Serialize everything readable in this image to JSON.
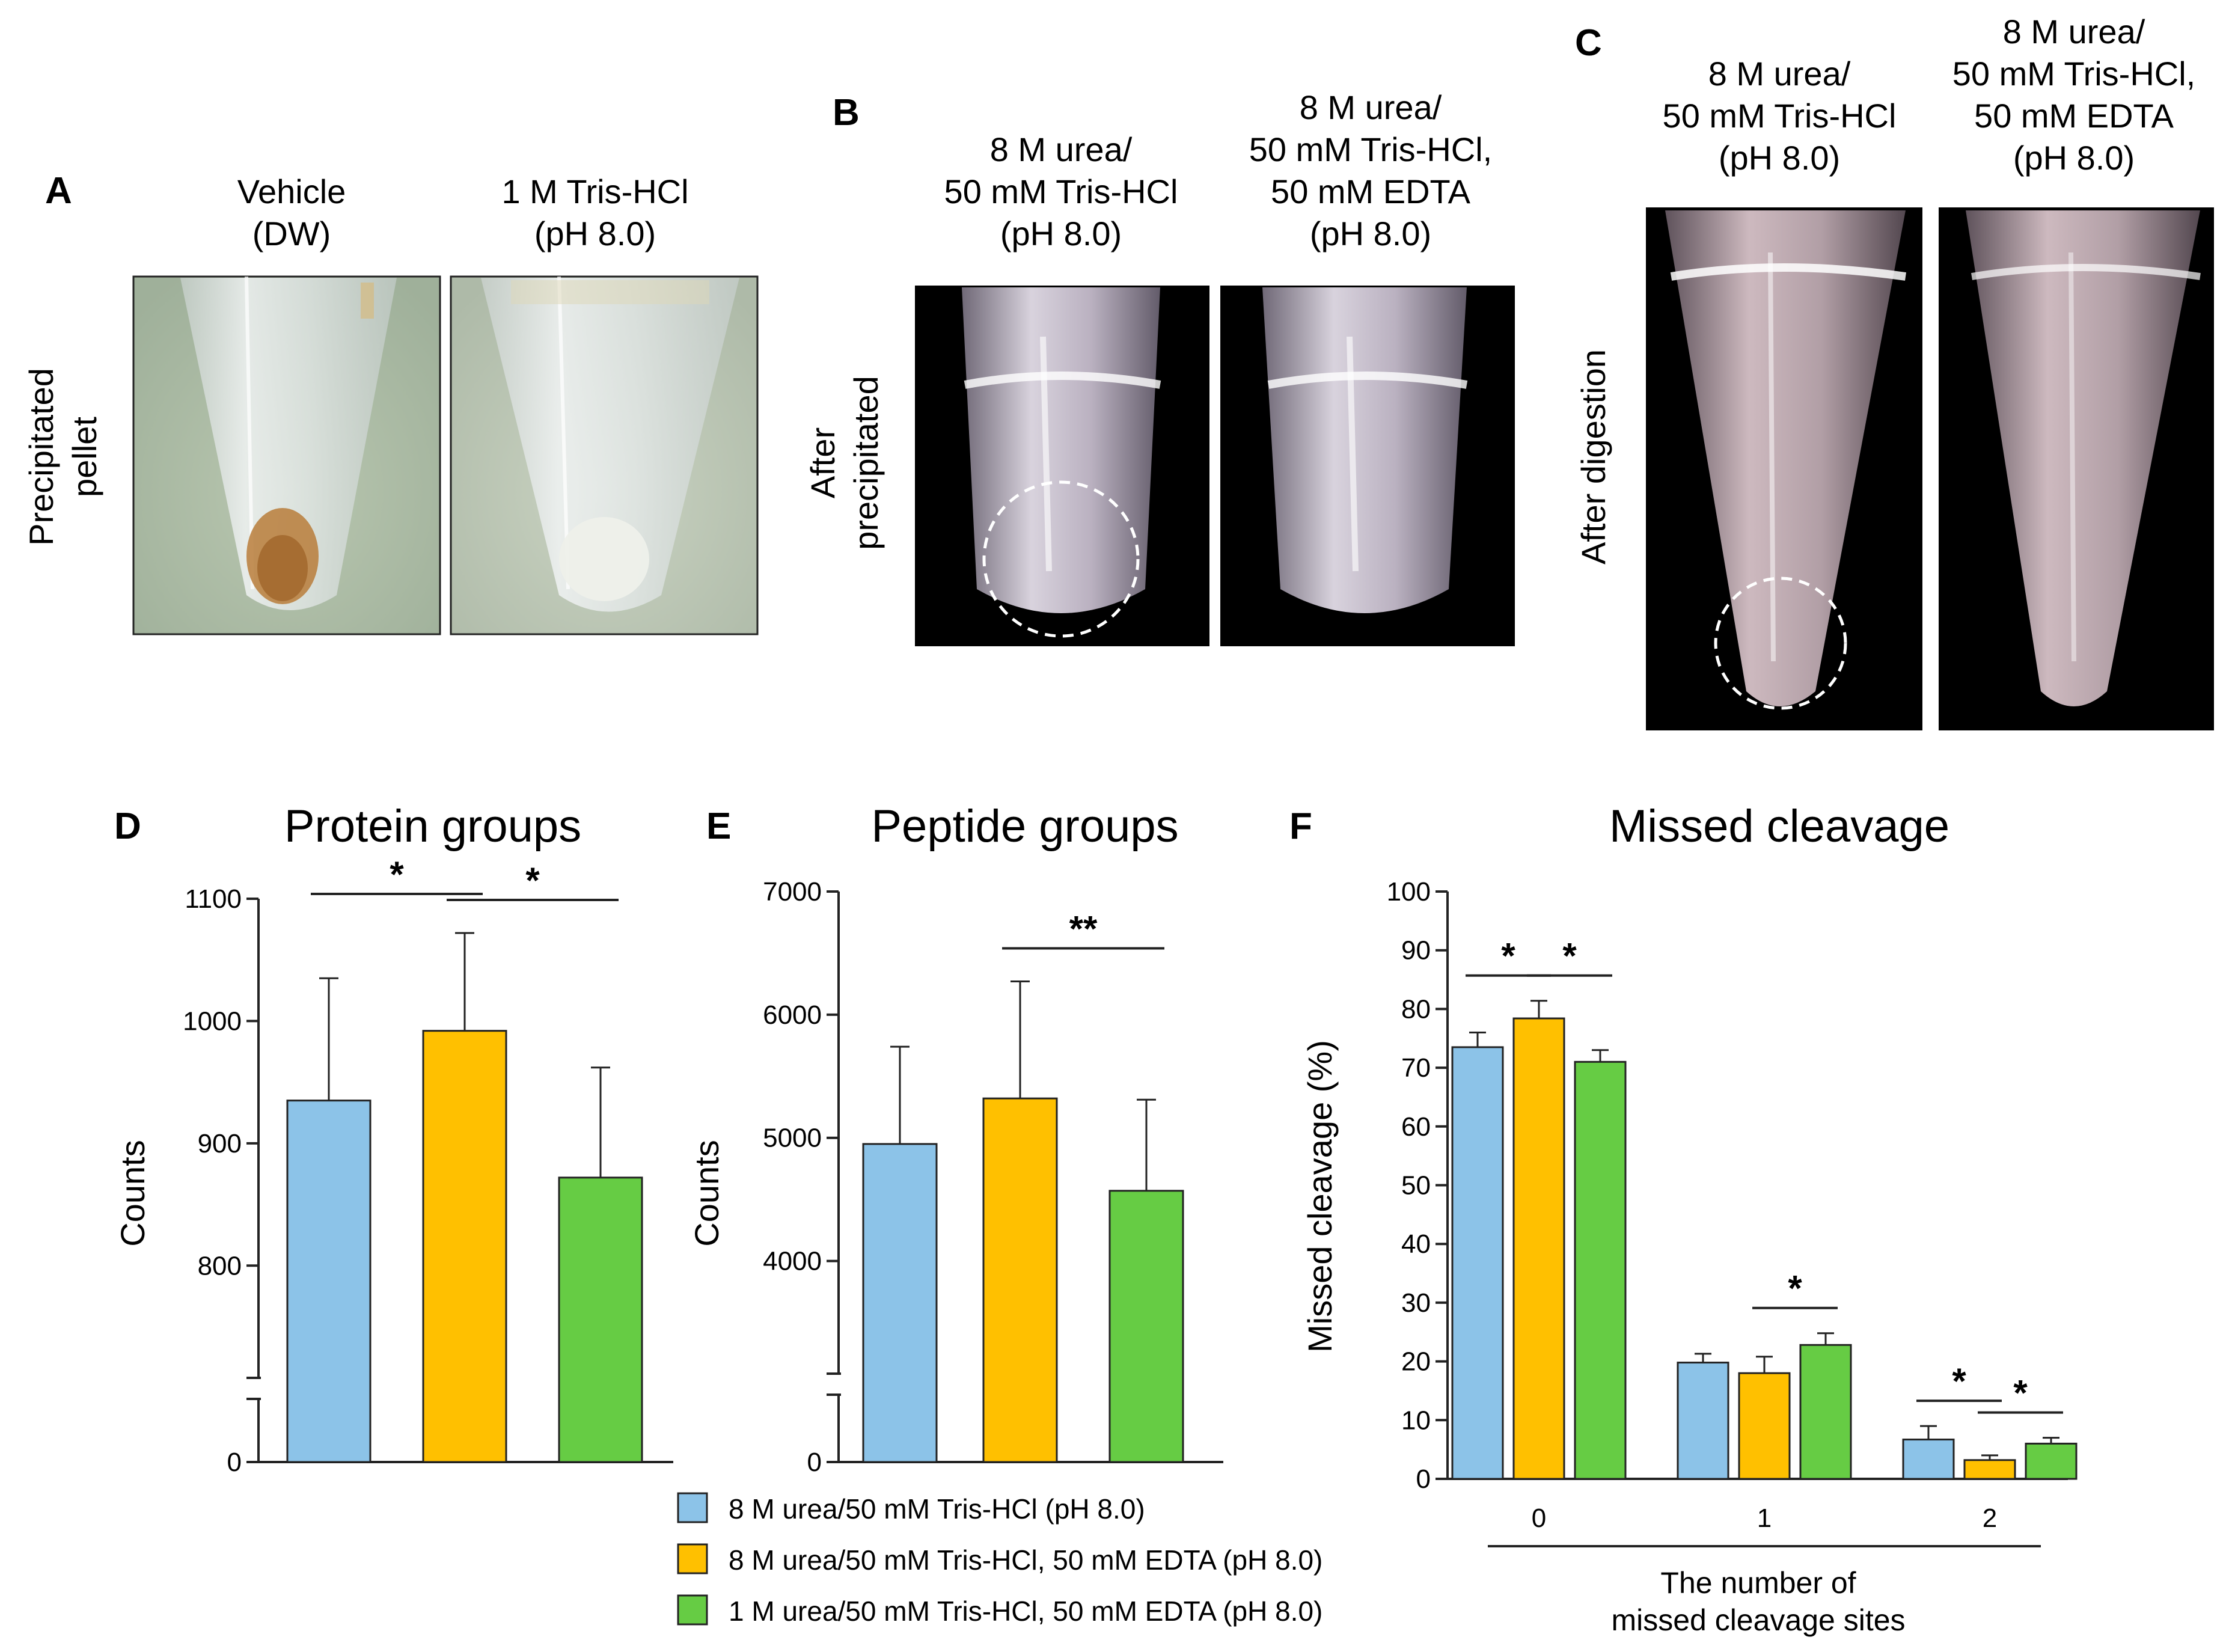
{
  "colors": {
    "series": [
      "#8cc3e8",
      "#ffc000",
      "#66cc44"
    ],
    "axis": "#222222"
  },
  "photos": {
    "A": {
      "letter": "A",
      "row_label": [
        "Precipitated",
        "pellet"
      ],
      "left_condition": [
        "Vehicle",
        "(DW)"
      ],
      "right_condition": [
        "1 M Tris-HCl",
        "(pH 8.0)"
      ]
    },
    "B": {
      "letter": "B",
      "row_label": [
        "After",
        "precipitated"
      ],
      "left_condition": [
        "8 M urea/",
        "50 mM Tris-HCl",
        "(pH 8.0)"
      ],
      "right_condition": [
        "8 M urea/",
        "50 mM Tris-HCl,",
        "50 mM EDTA",
        "(pH 8.0)"
      ]
    },
    "C": {
      "letter": "C",
      "row_label": [
        "After digestion"
      ],
      "left_condition": [
        "8 M urea/",
        "50 mM Tris-HCl",
        "(pH 8.0)"
      ],
      "right_condition": [
        "8 M urea/",
        "50 mM Tris-HCl,",
        "50 mM EDTA",
        "(pH 8.0)"
      ]
    }
  },
  "chart_data": [
    {
      "panel": "D",
      "type": "bar",
      "title": "Protein groups",
      "ylabel": "Counts",
      "xlabel": "",
      "axis_break": true,
      "ylim": [
        750,
        1100
      ],
      "yticks": [
        800,
        900,
        1000,
        1100
      ],
      "ytick_labels": [
        "800",
        "900",
        "1000",
        "1100"
      ],
      "bottom_label": "0",
      "categories": [
        "8 M urea/50 mM Tris-HCl (pH 8.0)",
        "8 M urea/50 mM Tris-HCl, 50 mM EDTA (pH 8.0)",
        "1 M urea/50 mM Tris-HCl, 50 mM EDTA (pH 8.0)"
      ],
      "values": [
        935,
        992,
        872
      ],
      "errors": [
        100,
        80,
        90
      ],
      "significance": [
        {
          "from": 0,
          "to": 1,
          "label": "*"
        },
        {
          "from": 1,
          "to": 2,
          "label": "*"
        }
      ]
    },
    {
      "panel": "E",
      "type": "bar",
      "title": "Peptide groups",
      "ylabel": "Counts",
      "xlabel": "",
      "axis_break": true,
      "ylim": [
        3500,
        7000
      ],
      "yticks": [
        4000,
        5000,
        6000,
        7000
      ],
      "ytick_labels": [
        "4000",
        "5000",
        "6000",
        "7000"
      ],
      "bottom_label": "0",
      "categories": [
        "8 M urea/50 mM Tris-HCl (pH 8.0)",
        "8 M urea/50 mM Tris-HCl, 50 mM EDTA (pH 8.0)",
        "1 M urea/50 mM Tris-HCl, 50 mM EDTA (pH 8.0)"
      ],
      "values": [
        4950,
        5320,
        4570
      ],
      "errors": [
        790,
        950,
        740
      ],
      "significance": [
        {
          "from": 1,
          "to": 2,
          "label": "**"
        }
      ]
    },
    {
      "panel": "F",
      "type": "bar",
      "title": "Missed cleavage",
      "ylabel": "Missed cleavage (%)",
      "xlabel": [
        "The number of",
        "missed cleavage sites"
      ],
      "ylim": [
        0,
        100
      ],
      "yticks": [
        0,
        10,
        20,
        30,
        40,
        50,
        60,
        70,
        80,
        90,
        100
      ],
      "ytick_labels": [
        "0",
        "10",
        "20",
        "30",
        "40",
        "50",
        "60",
        "70",
        "80",
        "90",
        "100"
      ],
      "categories": [
        "0",
        "1",
        "2"
      ],
      "series": [
        {
          "name": "8 M urea/50 mM Tris-HCl (pH 8.0)",
          "values": [
            73.5,
            19.8,
            6.7
          ],
          "errors": [
            2.5,
            1.5,
            2.3
          ]
        },
        {
          "name": "8 M urea/50 mM Tris-HCl, 50 mM EDTA (pH 8.0)",
          "values": [
            78.4,
            18.0,
            3.2
          ],
          "errors": [
            3.0,
            2.8,
            0.8
          ]
        },
        {
          "name": "1 M urea/50 mM Tris-HCl, 50 mM EDTA (pH 8.0)",
          "values": [
            71.0,
            22.8,
            6.0
          ],
          "errors": [
            2.0,
            2.0,
            1.0
          ]
        }
      ],
      "significance": [
        {
          "group": 0,
          "from": 0,
          "to": 1,
          "label": "*"
        },
        {
          "group": 0,
          "from": 1,
          "to": 2,
          "label": "*"
        },
        {
          "group": 1,
          "from": 1,
          "to": 2,
          "label": "*"
        },
        {
          "group": 2,
          "from": 0,
          "to": 1,
          "label": "*"
        },
        {
          "group": 2,
          "from": 1,
          "to": 2,
          "label": "*"
        }
      ]
    }
  ],
  "legend": [
    "8 M urea/50 mM Tris-HCl (pH 8.0)",
    "8 M urea/50 mM Tris-HCl, 50 mM EDTA (pH 8.0)",
    "1 M urea/50 mM Tris-HCl, 50 mM EDTA (pH 8.0)"
  ]
}
